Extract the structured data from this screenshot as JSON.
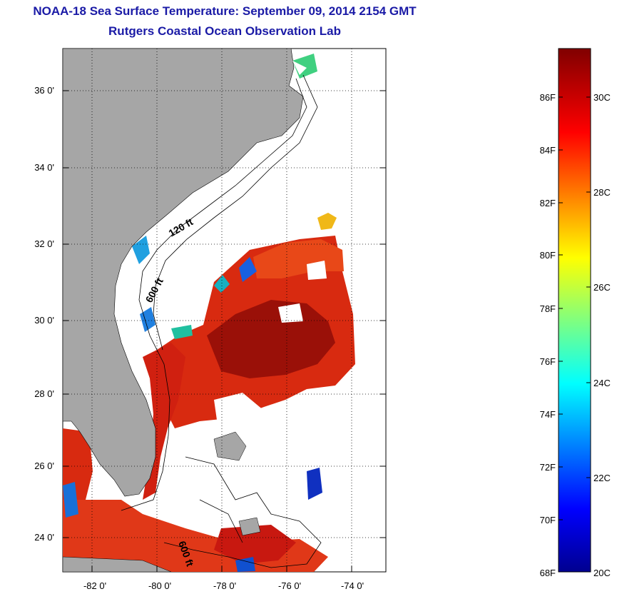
{
  "map": {
    "title": "NOAA-18 Sea Surface Temperature:  September 09, 2014 2154 GMT",
    "subtitle": "Rutgers Coastal Ocean Observation Lab",
    "latitude_labels": [
      "36 0'",
      "34 0'",
      "32 0'",
      "30 0'",
      "28 0'",
      "26 0'",
      "24 0'"
    ],
    "longitude_labels": [
      "-82 0'",
      "-80 0'",
      "-78 0'",
      "-76 0'",
      "-74 0'"
    ],
    "contour_labels": [
      "120 ft",
      "600 ft",
      "600 ft"
    ]
  },
  "colorbar": {
    "fahrenheit_labels": [
      "86F",
      "84F",
      "82F",
      "80F",
      "78F",
      "76F",
      "74F",
      "72F",
      "70F"
    ],
    "celsius_labels": [
      "30C",
      "28C",
      "26C",
      "24C",
      "22C"
    ],
    "min_f": "68F",
    "min_c": "20C"
  },
  "colors": {
    "title": "#1a1aa6",
    "land": "#a6a6a6",
    "sst_high": "#8b0000",
    "sst_mid": "#e83010",
    "sst_low": "#0010a0"
  }
}
